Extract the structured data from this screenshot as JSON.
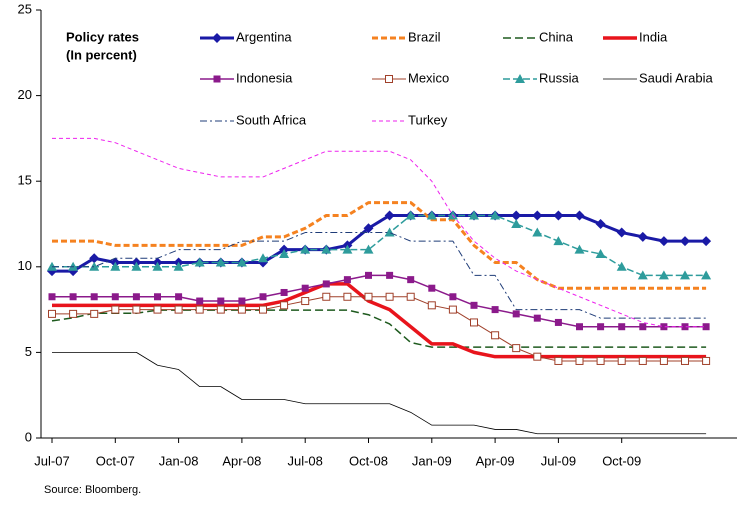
{
  "chart_data": {
    "type": "line",
    "annotation": [
      "Policy rates",
      "(In percent)"
    ],
    "source": "Source: Bloomberg.",
    "categories": [
      "Jul-07",
      null,
      null,
      "Oct-07",
      null,
      null,
      "Jan-08",
      null,
      null,
      "Apr-08",
      null,
      null,
      "Jul-08",
      null,
      null,
      "Oct-08",
      null,
      null,
      "Jan-09",
      null,
      null,
      "Apr-09",
      null,
      null,
      "Jul-09",
      null,
      null,
      "Oct-09",
      null,
      null,
      null,
      null
    ],
    "ylim": [
      0,
      25
    ],
    "yticks": [
      0,
      5,
      10,
      15,
      20,
      25
    ],
    "grid": false,
    "legend": "top",
    "series": [
      {
        "name": "Argentina",
        "color": "#1a1aa6",
        "width": 3,
        "dash": "none",
        "marker": "diamond",
        "values": [
          9.75,
          9.75,
          10.5,
          10.25,
          10.25,
          10.25,
          10.25,
          10.25,
          10.25,
          10.25,
          10.25,
          11,
          11,
          11,
          11.25,
          12.25,
          13,
          13,
          13,
          13,
          13,
          13,
          13,
          13,
          13,
          13,
          12.5,
          12,
          11.75,
          11.5,
          11.5,
          11.5
        ]
      },
      {
        "name": "Brazil",
        "color": "#f58220",
        "width": 3,
        "dash": "6 3",
        "marker": "none",
        "values": [
          11.5,
          11.5,
          11.5,
          11.25,
          11.25,
          11.25,
          11.25,
          11.25,
          11.25,
          11.25,
          11.75,
          11.75,
          12.25,
          13,
          13,
          13.75,
          13.75,
          13.75,
          12.75,
          12.75,
          11.25,
          10.25,
          10.25,
          9.25,
          8.75,
          8.75,
          8.75,
          8.75,
          8.75,
          8.75,
          8.75,
          8.75
        ]
      },
      {
        "name": "China",
        "color": "#1e5a1e",
        "width": 1.5,
        "dash": "8 4",
        "marker": "none",
        "values": [
          6.84,
          7.02,
          7.29,
          7.29,
          7.29,
          7.47,
          7.47,
          7.47,
          7.47,
          7.47,
          7.47,
          7.47,
          7.47,
          7.47,
          7.47,
          7.2,
          6.66,
          5.58,
          5.31,
          5.31,
          5.31,
          5.31,
          5.31,
          5.31,
          5.31,
          5.31,
          5.31,
          5.31,
          5.31,
          5.31,
          5.31,
          5.31
        ]
      },
      {
        "name": "India",
        "color": "#e8141c",
        "width": 3.5,
        "dash": "none",
        "marker": "none",
        "values": [
          7.75,
          7.75,
          7.75,
          7.75,
          7.75,
          7.75,
          7.75,
          7.75,
          7.75,
          7.75,
          7.75,
          8,
          8.5,
          9,
          9,
          8,
          7.5,
          6.5,
          5.5,
          5.5,
          5,
          4.75,
          4.75,
          4.75,
          4.75,
          4.75,
          4.75,
          4.75,
          4.75,
          4.75,
          4.75,
          4.75
        ]
      },
      {
        "name": "Indonesia",
        "color": "#8b1a8b",
        "width": 1.5,
        "dash": "none",
        "marker": "square",
        "values": [
          8.25,
          8.25,
          8.25,
          8.25,
          8.25,
          8.25,
          8.25,
          8,
          8,
          8,
          8.25,
          8.5,
          8.75,
          9,
          9.25,
          9.5,
          9.5,
          9.25,
          8.75,
          8.25,
          7.75,
          7.5,
          7.25,
          7,
          6.75,
          6.5,
          6.5,
          6.5,
          6.5,
          6.5,
          6.5,
          6.5
        ]
      },
      {
        "name": "Mexico",
        "color": "#a0402a",
        "width": 1,
        "dash": "none",
        "marker": "open-square",
        "values": [
          7.25,
          7.25,
          7.25,
          7.5,
          7.5,
          7.5,
          7.5,
          7.5,
          7.5,
          7.5,
          7.5,
          7.75,
          8,
          8.25,
          8.25,
          8.25,
          8.25,
          8.25,
          7.75,
          7.5,
          6.75,
          6,
          5.25,
          4.75,
          4.5,
          4.5,
          4.5,
          4.5,
          4.5,
          4.5,
          4.5,
          4.5
        ]
      },
      {
        "name": "Russia",
        "color": "#2e9c9c",
        "width": 1.5,
        "dash": "7 3",
        "marker": "triangle",
        "values": [
          10,
          10,
          10,
          10,
          10,
          10,
          10,
          10.25,
          10.25,
          10.25,
          10.5,
          10.75,
          11,
          11,
          11,
          11,
          12,
          13,
          13,
          13,
          13,
          13,
          12.5,
          12,
          11.5,
          11,
          10.75,
          10,
          9.5,
          9.5,
          9.5,
          9.5
        ]
      },
      {
        "name": "Saudi Arabia",
        "color": "#000000",
        "width": 0.8,
        "dash": "none",
        "marker": "none",
        "values": [
          5,
          5,
          5,
          5,
          5,
          4.25,
          4,
          3,
          3,
          2.25,
          2.25,
          2.25,
          2,
          2,
          2,
          2,
          2,
          1.5,
          0.75,
          0.75,
          0.75,
          0.5,
          0.5,
          0.25,
          0.25,
          0.25,
          0.25,
          0.25,
          0.25,
          0.25,
          0.25,
          0.25
        ]
      },
      {
        "name": "South Africa",
        "color": "#1f3c78",
        "width": 1,
        "dash": "7 3 2 3",
        "marker": "none",
        "values": [
          10,
          10,
          10,
          10.5,
          10.5,
          10.5,
          11,
          11,
          11,
          11.5,
          11.5,
          11.5,
          12,
          12,
          12,
          12,
          12,
          11.5,
          11.5,
          11.5,
          9.5,
          9.5,
          7.5,
          7.5,
          7.5,
          7.5,
          7,
          7,
          7,
          7,
          7,
          7
        ]
      },
      {
        "name": "Turkey",
        "color": "#ee22ee",
        "width": 1,
        "dash": "4 3",
        "marker": "none",
        "values": [
          17.5,
          17.5,
          17.5,
          17.25,
          16.75,
          16.25,
          15.75,
          15.5,
          15.25,
          15.25,
          15.25,
          15.75,
          16.25,
          16.75,
          16.75,
          16.75,
          16.75,
          16.25,
          15,
          13,
          11.5,
          10.5,
          9.75,
          9.25,
          8.75,
          8.25,
          7.75,
          7.25,
          6.75,
          6.5,
          6.5,
          6.5
        ]
      }
    ]
  }
}
